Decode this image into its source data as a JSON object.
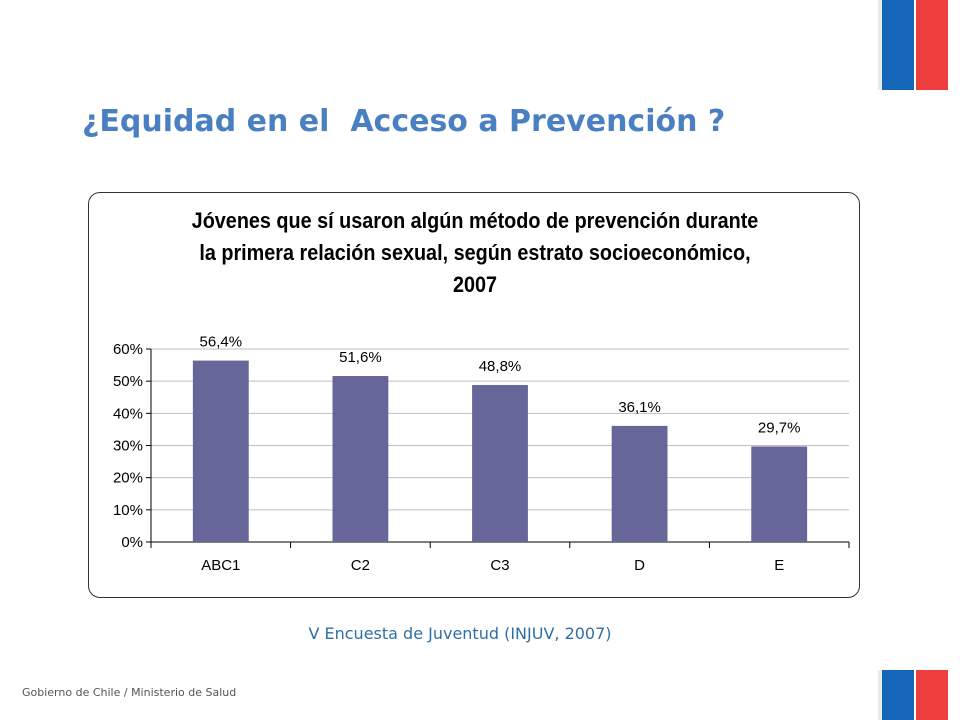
{
  "title": "¿Equidad en el  Acceso a Prevención ?",
  "source": "V Encuesta de Juventud (INJUV, 2007)",
  "footer": "Gobierno de Chile / Ministerio de Salud",
  "colors": {
    "bar": "#666699",
    "title": "#4a7fc1",
    "source": "#2e6fa7",
    "flag_blue": "#1565b8",
    "flag_red": "#ef3e3e"
  },
  "chart_data": {
    "type": "bar",
    "title_lines": [
      "Jóvenes que sí usaron algún método de prevención durante",
      "la primera relación sexual, según estrato socioeconómico,",
      "2007"
    ],
    "categories": [
      "ABC1",
      "C2",
      "C3",
      "D",
      "E"
    ],
    "values": [
      56.4,
      51.6,
      48.8,
      36.1,
      29.7
    ],
    "data_labels": [
      "56,4%",
      "51,6%",
      "48,8%",
      "36,1%",
      "29,7%"
    ],
    "y_ticks": [
      "0%",
      "10%",
      "20%",
      "30%",
      "40%",
      "50%",
      "60%"
    ],
    "ylim": [
      0,
      60
    ],
    "grid": true,
    "legend": false
  }
}
